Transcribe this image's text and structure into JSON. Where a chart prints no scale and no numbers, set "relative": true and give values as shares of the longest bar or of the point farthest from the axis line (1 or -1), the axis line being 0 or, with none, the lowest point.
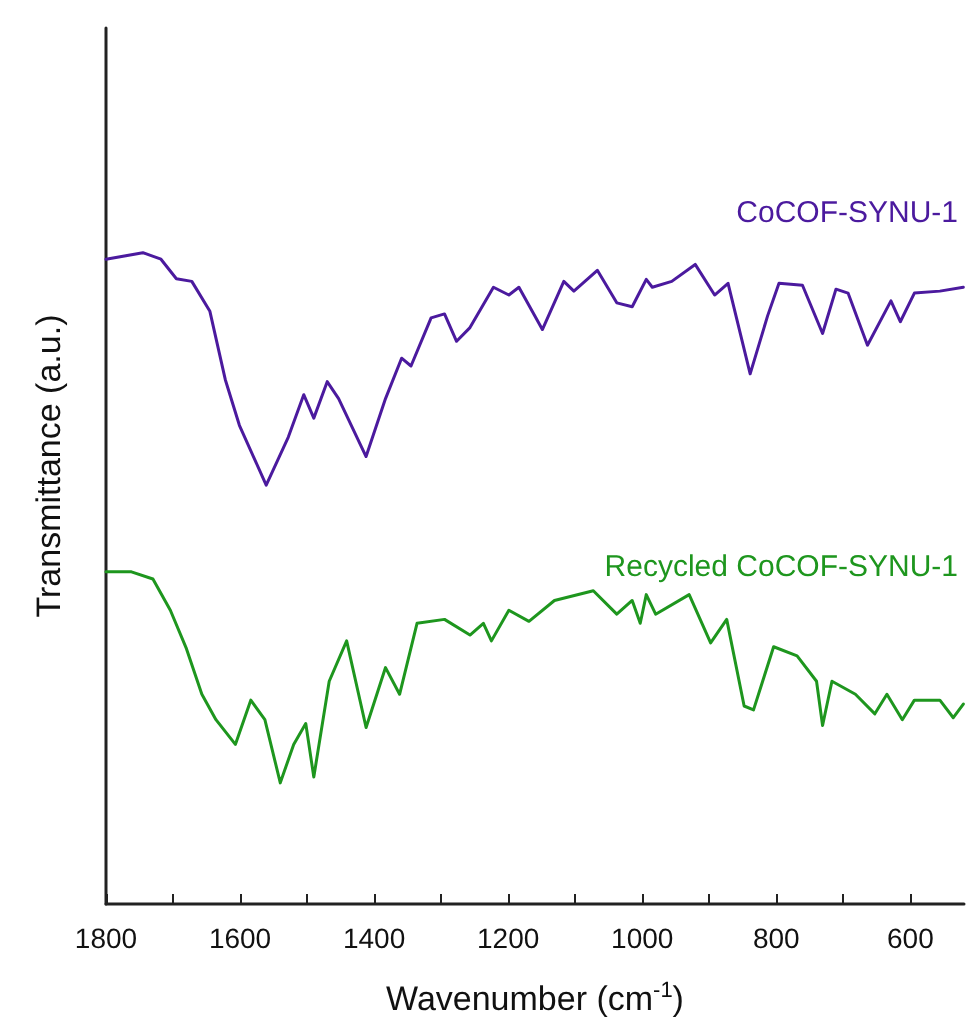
{
  "chart_data": {
    "type": "line",
    "relative": true,
    "xlabel": "Wavenumber (cm$^{-1}$)",
    "ylabel": "Transmittance (a.u.)",
    "xlim": [
      1800,
      520
    ],
    "xticks": [
      1800,
      {
        "value": 1700,
        "label": null
      },
      1600,
      {
        "value": 1500,
        "label": null
      },
      1400,
      {
        "value": 1300,
        "label": null
      },
      1200,
      {
        "value": 1100,
        "label": null
      },
      1000,
      {
        "value": 900,
        "label": null
      },
      800,
      {
        "value": 700,
        "label": null
      },
      600
    ],
    "grid": false,
    "legend": false,
    "marker": "none",
    "line_style": "solid",
    "series": [
      {
        "name": "CoCOF-SYNU-1",
        "color": "#4b1a9e",
        "x": [
          1800,
          1745,
          1718,
          1695,
          1672,
          1645,
          1622,
          1601,
          1561,
          1528,
          1505,
          1490,
          1470,
          1453,
          1412,
          1383,
          1359,
          1345,
          1315,
          1295,
          1277,
          1257,
          1222,
          1199,
          1184,
          1149,
          1117,
          1102,
          1067,
          1038,
          1015,
          1006,
          994,
          985,
          956,
          921,
          892,
          872,
          839,
          813,
          796,
          761,
          731,
          711,
          693,
          664,
          629,
          615,
          594,
          556,
          521
        ],
        "values": [
          0.99,
          1.0,
          0.99,
          0.96,
          0.956,
          0.91,
          0.805,
          0.735,
          0.643,
          0.717,
          0.782,
          0.746,
          0.802,
          0.776,
          0.687,
          0.776,
          0.838,
          0.826,
          0.9,
          0.906,
          0.864,
          0.885,
          0.947,
          0.935,
          0.947,
          0.882,
          0.956,
          0.941,
          0.973,
          0.923,
          0.917,
          0.935,
          0.959,
          0.947,
          0.956,
          0.982,
          0.935,
          0.953,
          0.814,
          0.903,
          0.953,
          0.95,
          0.876,
          0.944,
          0.938,
          0.858,
          0.926,
          0.894,
          0.938,
          0.941,
          0.947
        ]
      },
      {
        "name": "Recycled CoCOF-SYNU-1",
        "color": "#1e961e",
        "x": [
          1800,
          1762,
          1730,
          1704,
          1680,
          1657,
          1636,
          1607,
          1584,
          1563,
          1540,
          1520,
          1502,
          1490,
          1467,
          1441,
          1412,
          1383,
          1362,
          1336,
          1295,
          1257,
          1237,
          1225,
          1199,
          1169,
          1131,
          1073,
          1038,
          1015,
          1003,
          994,
          980,
          930,
          898,
          874,
          848,
          834,
          804,
          769,
          740,
          731,
          717,
          682,
          653,
          635,
          612,
          594,
          556,
          536,
          521
        ],
        "values": [
          0.51,
          0.51,
          0.499,
          0.451,
          0.392,
          0.322,
          0.283,
          0.245,
          0.313,
          0.283,
          0.186,
          0.245,
          0.277,
          0.195,
          0.342,
          0.404,
          0.271,
          0.363,
          0.322,
          0.431,
          0.437,
          0.413,
          0.431,
          0.404,
          0.451,
          0.434,
          0.466,
          0.481,
          0.445,
          0.466,
          0.431,
          0.475,
          0.445,
          0.475,
          0.401,
          0.437,
          0.304,
          0.298,
          0.395,
          0.381,
          0.342,
          0.274,
          0.342,
          0.322,
          0.292,
          0.322,
          0.283,
          0.313,
          0.313,
          0.286,
          0.307
        ]
      }
    ]
  }
}
